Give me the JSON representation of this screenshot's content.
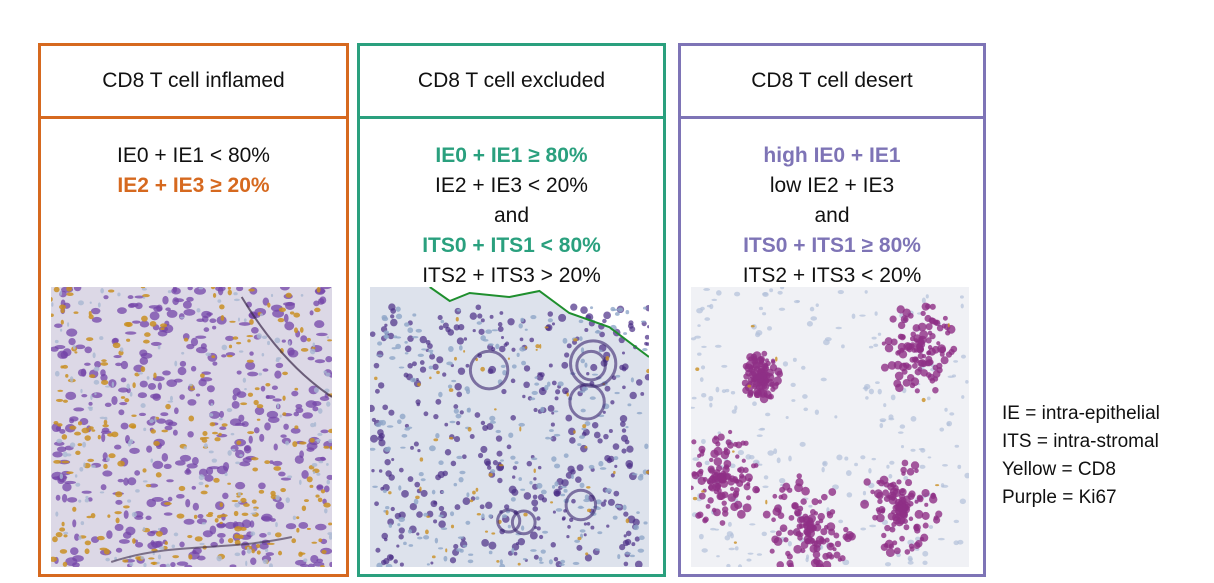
{
  "colors": {
    "inflamed": "#d6691f",
    "excluded": "#2aa07e",
    "desert": "#7e74b6",
    "cd8_yellow": "#c8901f",
    "ki67_purple": "#6b3a9c",
    "desert_magenta": "#8e2f86",
    "hematoxylin_blue": "#a9b8d2"
  },
  "panels": [
    {
      "title": "CD8 T cell inflamed",
      "lines": [
        {
          "text": "IE0 + IE1 < 80%",
          "highlight": false
        },
        {
          "text": "IE2 + IE3 ≥ 20%",
          "highlight": true
        }
      ]
    },
    {
      "title": "CD8 T cell excluded",
      "lines": [
        {
          "text": "IE0 + IE1 ≥ 80%",
          "highlight": true
        },
        {
          "text": "IE2 + IE3 < 20%",
          "highlight": false
        },
        {
          "text": "and",
          "highlight": false
        },
        {
          "text": "ITS0 + ITS1 < 80%",
          "highlight": true
        },
        {
          "text": "ITS2 + ITS3 > 20%",
          "highlight": false
        }
      ]
    },
    {
      "title": "CD8 T cell desert",
      "lines": [
        {
          "text": "high IE0 + IE1",
          "highlight": true
        },
        {
          "text": "low IE2 + IE3",
          "highlight": false
        },
        {
          "text": "and",
          "highlight": false
        },
        {
          "text": "ITS0 + ITS1 ≥ 80%",
          "highlight": true
        },
        {
          "text": "ITS2 + ITS3 < 20%",
          "highlight": false
        }
      ]
    }
  ],
  "legend": [
    "IE = intra-epithelial",
    "ITS = intra-stromal",
    "Yellow = CD8",
    "Purple = Ki67"
  ]
}
